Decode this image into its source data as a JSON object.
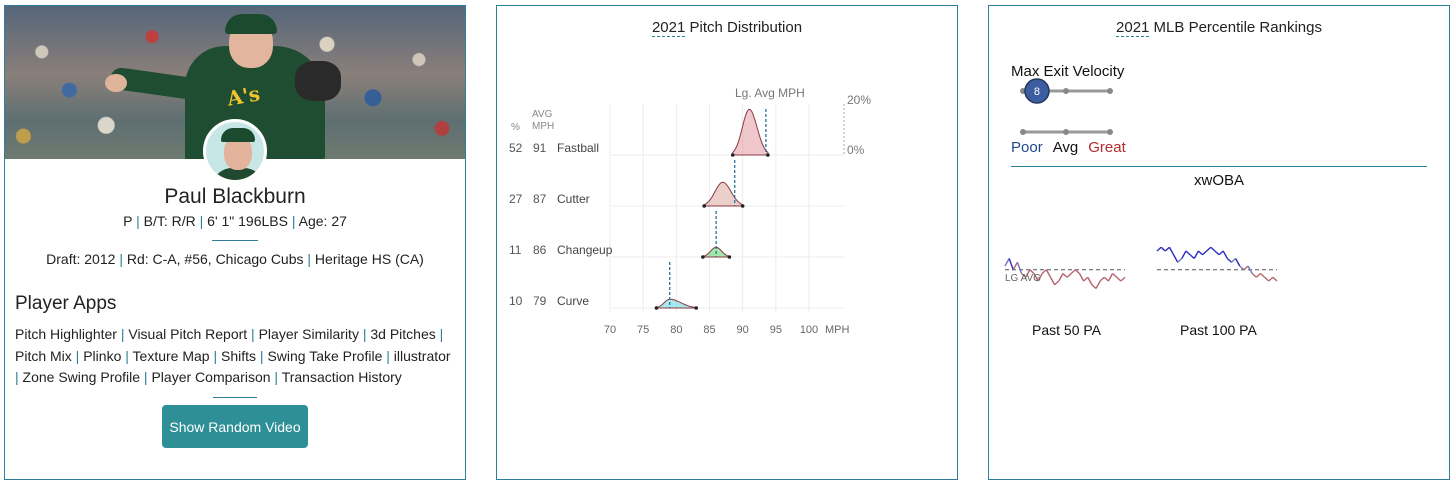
{
  "player": {
    "name": "Paul Blackburn",
    "position": "P",
    "bt": "B/T: R/R",
    "size": "6' 1\" 196LBS",
    "age": "Age: 27",
    "draft_label": "Draft:",
    "draft_year": "2012",
    "draft_round": "Rd: C-A, #56,",
    "draft_team": "Chicago Cubs",
    "school": "Heritage HS (CA)",
    "jersey_logo": "A's"
  },
  "apps": {
    "title": "Player Apps",
    "items": [
      "Pitch Highlighter",
      "Visual Pitch Report",
      "Player Similarity",
      "3d Pitches",
      "Pitch Mix",
      "Plinko",
      "Texture Map",
      "Shifts",
      "Swing Take Profile",
      "illustrator",
      "Zone Swing Profile",
      "Player Comparison",
      "Transaction History"
    ]
  },
  "button": {
    "label": "Show Random Video"
  },
  "distribution": {
    "title_year": "2021",
    "title_rest": " Pitch Distribution",
    "col_pct": "%",
    "col_avg1": "AVG",
    "col_avg2": "MPH",
    "lg_avg_label": "Lg. Avg MPH",
    "scale_top": "20%",
    "scale_bottom": "0%",
    "x_unit": "MPH",
    "x_ticks": [
      70,
      75,
      80,
      85,
      90,
      95,
      100
    ],
    "colors": {
      "Fastball": "#e39aa3",
      "Cutter": "#d9a89f",
      "Changeup": "#57d46a",
      "Curve": "#5ed6e0"
    },
    "pitches": [
      {
        "name": "Fastball",
        "pct": 52,
        "mph": 91,
        "lg_avg": 93.5,
        "min": 88.5,
        "max": 93.8
      },
      {
        "name": "Cutter",
        "pct": 27,
        "mph": 87,
        "lg_avg": 88.8,
        "min": 84.2,
        "max": 90.0
      },
      {
        "name": "Changeup",
        "pct": 11,
        "mph": 86,
        "lg_avg": 86.0,
        "min": 84.0,
        "max": 88.0
      },
      {
        "name": "Curve",
        "pct": 10,
        "mph": 79,
        "lg_avg": 79.0,
        "min": 77.0,
        "max": 83.0
      }
    ]
  },
  "percentile": {
    "title_year": "2021",
    "title_rest": " MLB Percentile Rankings",
    "metric": "Max Exit Velocity",
    "value": 8,
    "legend": {
      "poor": "Poor",
      "avg": "Avg",
      "great": "Great"
    },
    "xwoba_title": "xwOBA",
    "lg_avg_label": "LG AVG",
    "past50_label": "Past 50 PA",
    "past100_label": "Past 100 PA",
    "past50_values": [
      0.32,
      0.34,
      0.31,
      0.33,
      0.3,
      0.29,
      0.31,
      0.3,
      0.28,
      0.3,
      0.31,
      0.29,
      0.27,
      0.28,
      0.3,
      0.29,
      0.3,
      0.31,
      0.3,
      0.28,
      0.29,
      0.27,
      0.26,
      0.28,
      0.29,
      0.28,
      0.3,
      0.29,
      0.28,
      0.29
    ],
    "past100_values": [
      0.36,
      0.37,
      0.36,
      0.37,
      0.35,
      0.33,
      0.34,
      0.36,
      0.35,
      0.34,
      0.36,
      0.35,
      0.36,
      0.37,
      0.36,
      0.35,
      0.36,
      0.34,
      0.33,
      0.34,
      0.32,
      0.31,
      0.32,
      0.3,
      0.29,
      0.3,
      0.29,
      0.28,
      0.29,
      0.28
    ],
    "lg_avg": 0.31
  }
}
